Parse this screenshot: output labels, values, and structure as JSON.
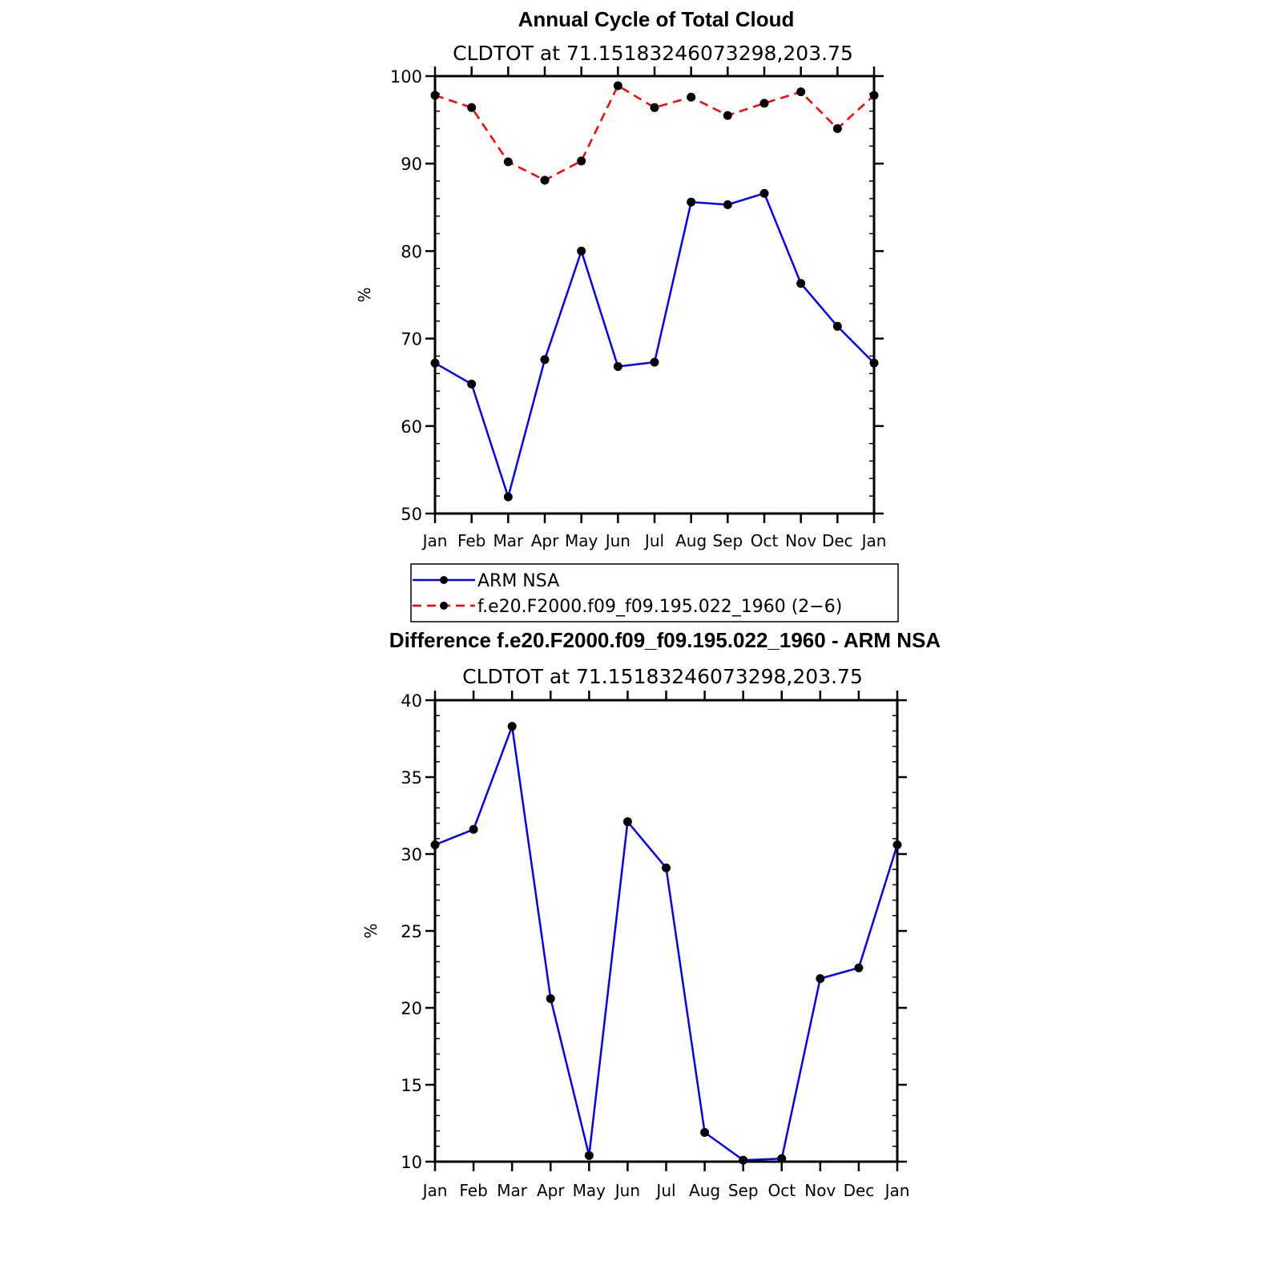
{
  "chart_data": [
    {
      "type": "line",
      "title": "Annual Cycle of Total Cloud",
      "subtitle": "CLDTOT at 71.15183246073298,203.75",
      "xlabel": "",
      "ylabel": "%",
      "categories": [
        "Jan",
        "Feb",
        "Mar",
        "Apr",
        "May",
        "Jun",
        "Jul",
        "Aug",
        "Sep",
        "Oct",
        "Nov",
        "Dec",
        "Jan"
      ],
      "ylim": [
        50,
        100
      ],
      "yticks": [
        50,
        60,
        70,
        80,
        90,
        100
      ],
      "series": [
        {
          "name": "ARM NSA",
          "color": "#0000ff",
          "dash": "solid",
          "values": [
            67.2,
            64.8,
            51.9,
            67.6,
            80.0,
            66.8,
            67.3,
            85.6,
            85.3,
            86.6,
            76.3,
            71.4,
            67.2
          ]
        },
        {
          "name": "f.e20.F2000.f09_f09.195.022_1960 (2−6)",
          "color": "#ff0000",
          "dash": "dashed",
          "values": [
            97.8,
            96.4,
            90.2,
            88.1,
            90.3,
            98.9,
            96.4,
            97.6,
            95.5,
            96.9,
            98.2,
            94.0,
            97.8
          ]
        }
      ]
    },
    {
      "type": "line",
      "title": "Difference f.e20.F2000.f09_f09.195.022_1960 - ARM NSA",
      "subtitle": "CLDTOT at 71.15183246073298,203.75",
      "xlabel": "",
      "ylabel": "%",
      "categories": [
        "Jan",
        "Feb",
        "Mar",
        "Apr",
        "May",
        "Jun",
        "Jul",
        "Aug",
        "Sep",
        "Oct",
        "Nov",
        "Dec",
        "Jan"
      ],
      "ylim": [
        10,
        40
      ],
      "yticks": [
        10,
        15,
        20,
        25,
        30,
        35,
        40
      ],
      "series": [
        {
          "name": "Difference",
          "color": "#0000ff",
          "dash": "solid",
          "values": [
            30.6,
            31.6,
            38.3,
            20.6,
            10.4,
            32.1,
            29.1,
            11.9,
            10.1,
            10.2,
            21.9,
            22.6,
            30.6
          ]
        }
      ]
    }
  ]
}
